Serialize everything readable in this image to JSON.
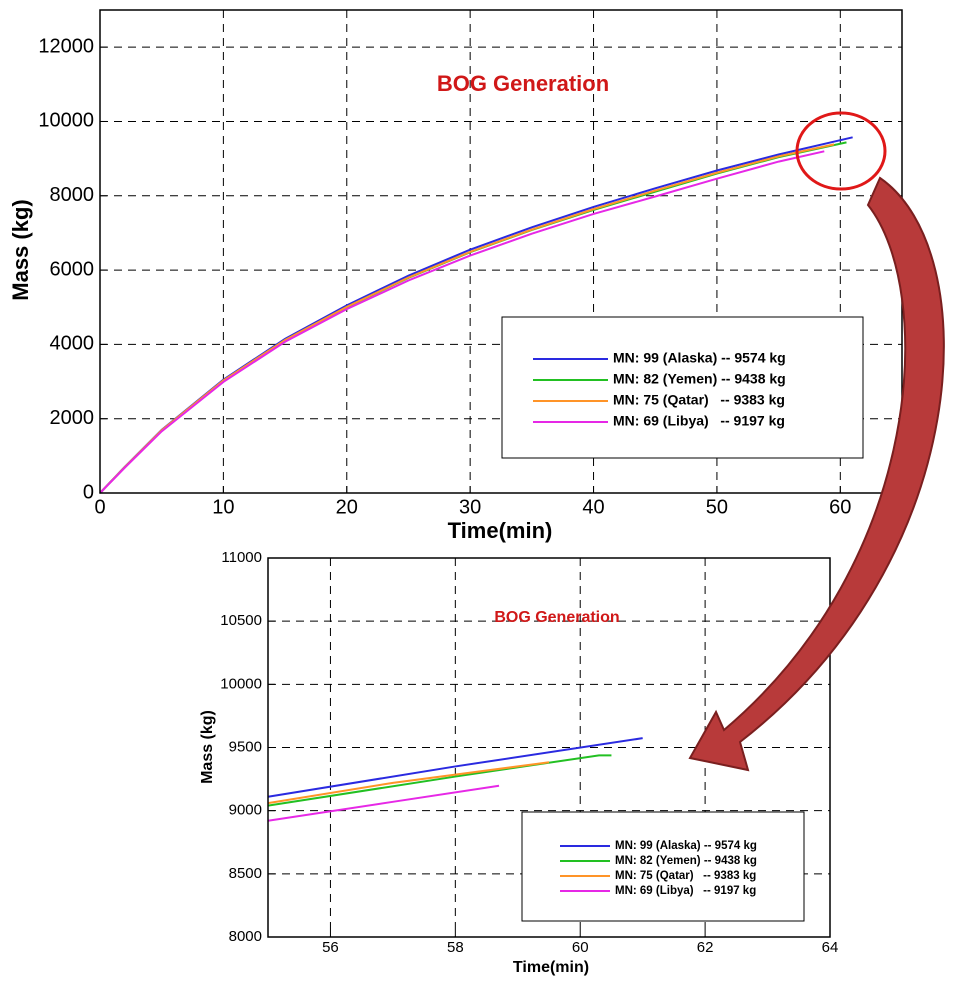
{
  "chart_data": [
    {
      "type": "line",
      "title": "BOG Generation",
      "x_label": "Time(min)",
      "y_label": "Mass (kg)",
      "xlim": [
        0,
        65
      ],
      "xticks": [
        0,
        10,
        20,
        30,
        40,
        50,
        60
      ],
      "ylim": [
        0,
        13000
      ],
      "yticks": [
        0,
        2000,
        4000,
        6000,
        8000,
        10000,
        12000
      ],
      "grid": true,
      "legend": "lower right",
      "series": [
        {
          "name": "MN: 99 (Alaska) -- 9574 kg",
          "color": "#2a2ae0",
          "x": [
            0,
            2,
            5,
            10,
            15,
            20,
            25,
            30,
            35,
            40,
            45,
            50,
            55,
            61
          ],
          "values": [
            0,
            700,
            1700,
            3050,
            4150,
            5050,
            5850,
            6550,
            7150,
            7700,
            8200,
            8680,
            9110,
            9574
          ]
        },
        {
          "name": "MN: 82 (Yemen) -- 9438 kg",
          "color": "#22c022",
          "x": [
            0,
            2,
            5,
            10,
            15,
            20,
            25,
            30,
            35,
            40,
            45,
            50,
            55,
            60.5
          ],
          "values": [
            0,
            690,
            1680,
            3020,
            4110,
            5000,
            5790,
            6480,
            7080,
            7620,
            8110,
            8600,
            9040,
            9438
          ]
        },
        {
          "name": "MN: 75 (Qatar)   -- 9383 kg",
          "color": "#ff9428",
          "x": [
            0,
            2,
            5,
            10,
            15,
            20,
            25,
            30,
            35,
            40,
            45,
            50,
            55,
            59.5
          ],
          "values": [
            0,
            695,
            1690,
            3030,
            4120,
            5010,
            5800,
            6490,
            7090,
            7640,
            8140,
            8620,
            9060,
            9383
          ]
        },
        {
          "name": "MN: 69 (Libya)   -- 9197 kg",
          "color": "#e628e6",
          "x": [
            0,
            2,
            5,
            10,
            15,
            20,
            25,
            30,
            35,
            40,
            45,
            50,
            55,
            58.7
          ],
          "values": [
            0,
            680,
            1660,
            2990,
            4070,
            4950,
            5720,
            6390,
            6980,
            7510,
            7980,
            8460,
            8920,
            9197
          ]
        }
      ]
    },
    {
      "type": "line",
      "title": "BOG Generation",
      "x_label": "Time(min)",
      "y_label": "Mass (kg)",
      "xlim": [
        55,
        64
      ],
      "xticks": [
        56,
        58,
        60,
        62,
        64
      ],
      "ylim": [
        8000,
        11000
      ],
      "yticks": [
        8000,
        8500,
        9000,
        9500,
        10000,
        10500,
        11000
      ],
      "grid": true,
      "legend": "lower right",
      "series": [
        {
          "name": "MN: 99 (Alaska) -- 9574 kg",
          "color": "#2a2ae0",
          "x": [
            55,
            58,
            61
          ],
          "values": [
            9110,
            9350,
            9574
          ]
        },
        {
          "name": "MN: 82 (Yemen) -- 9438 kg",
          "color": "#22c022",
          "x": [
            55,
            58,
            60.3,
            60.5
          ],
          "values": [
            9040,
            9270,
            9438,
            9438
          ]
        },
        {
          "name": "MN: 75 (Qatar)   -- 9383 kg",
          "color": "#ff9428",
          "x": [
            55,
            57,
            59.5
          ],
          "values": [
            9060,
            9220,
            9383
          ]
        },
        {
          "name": "MN: 69 (Libya)   -- 9197 kg",
          "color": "#e628e6",
          "x": [
            55,
            57,
            58.7
          ],
          "values": [
            8920,
            9070,
            9197
          ]
        }
      ]
    }
  ]
}
